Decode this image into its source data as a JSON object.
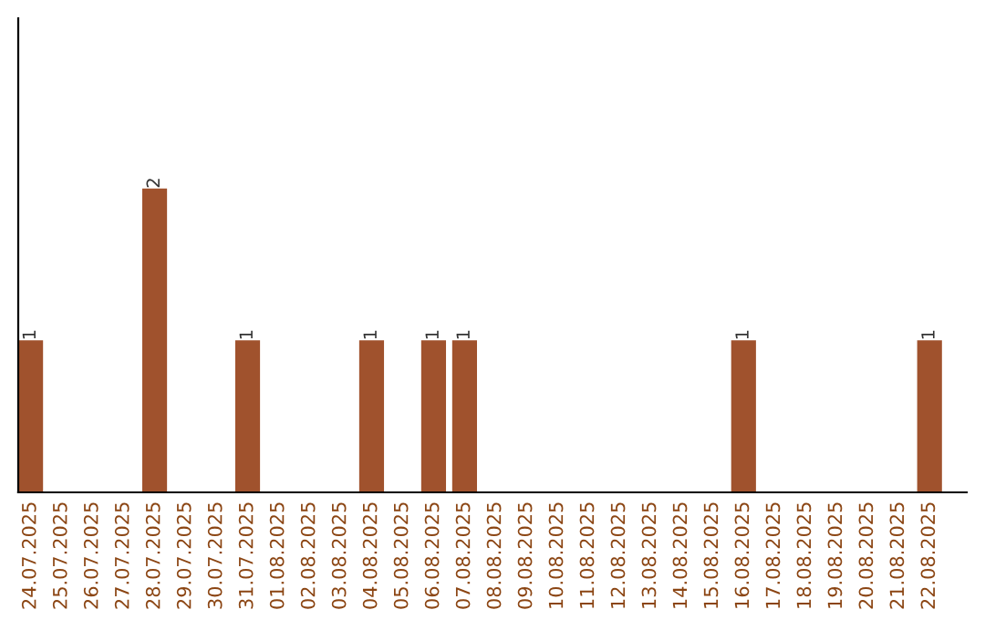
{
  "chart_data": {
    "type": "bar",
    "categories": [
      "24.07.2025",
      "25.07.2025",
      "26.07.2025",
      "27.07.2025",
      "28.07.2025",
      "29.07.2025",
      "30.07.2025",
      "31.07.2025",
      "01.08.2025",
      "02.08.2025",
      "03.08.2025",
      "04.08.2025",
      "05.08.2025",
      "06.08.2025",
      "07.08.2025",
      "08.08.2025",
      "09.08.2025",
      "10.08.2025",
      "11.08.2025",
      "12.08.2025",
      "13.08.2025",
      "14.08.2025",
      "15.08.2025",
      "16.08.2025",
      "17.08.2025",
      "18.08.2025",
      "19.08.2025",
      "20.08.2025",
      "21.08.2025",
      "22.08.2025"
    ],
    "values": [
      1,
      0,
      0,
      0,
      2,
      0,
      0,
      1,
      0,
      0,
      0,
      1,
      0,
      1,
      1,
      0,
      0,
      0,
      0,
      0,
      0,
      0,
      0,
      1,
      0,
      0,
      0,
      0,
      0,
      1
    ],
    "value_labels": [
      "1",
      null,
      null,
      null,
      "2",
      null,
      null,
      "1",
      null,
      null,
      null,
      "1",
      null,
      "1",
      "1",
      null,
      null,
      null,
      null,
      null,
      null,
      null,
      null,
      "1",
      null,
      null,
      null,
      null,
      null,
      "1"
    ],
    "color": "#a0522d",
    "tick_labels": "x",
    "grid": false,
    "legend": false
  }
}
